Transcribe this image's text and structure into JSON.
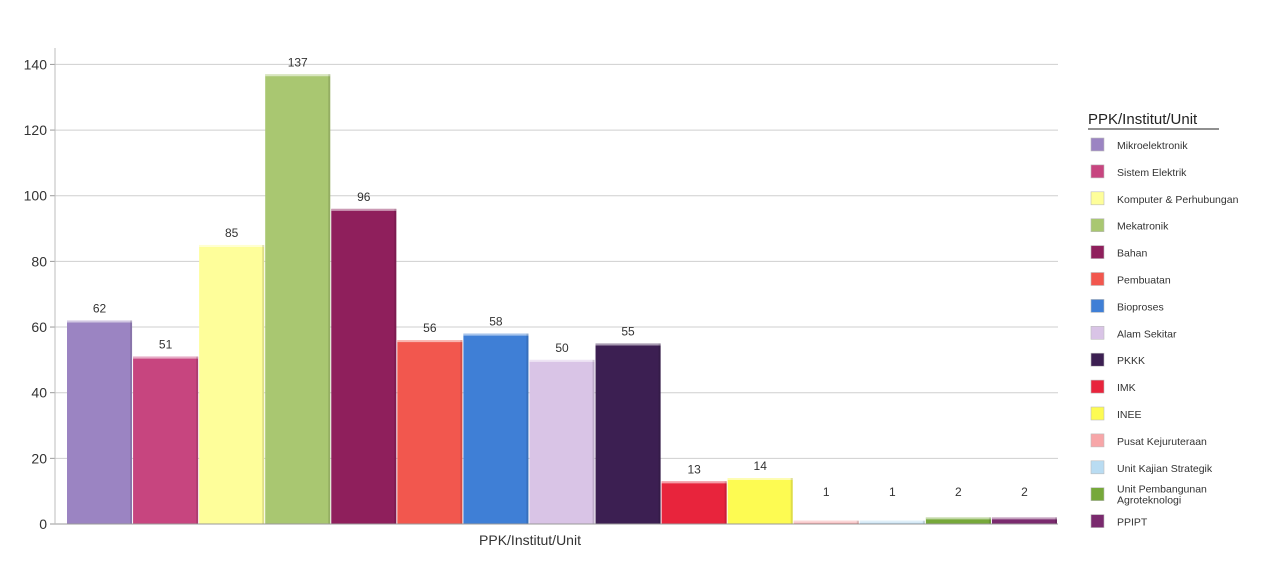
{
  "chart_data": {
    "type": "bar",
    "title": "",
    "xlabel": "PPK/Institut/Unit",
    "ylabel": "",
    "ylim": [
      0,
      145
    ],
    "yticks": [
      0,
      20,
      40,
      60,
      80,
      100,
      120,
      140
    ],
    "grid": true,
    "legend_position": "right",
    "legend_title": "PPK/Institut/Unit",
    "categories": [
      "Mikroelektronik",
      "Sistem Elektrik",
      "Komputer & Perhubungan",
      "Mekatronik",
      "Bahan",
      "Pembuatan",
      "Bioproses",
      "Alam Sekitar",
      "PKKK",
      "IMK",
      "INEE",
      "Pusat Kejuruteraan",
      "Unit Kajian Strategik",
      "Unit Pembangunan Agroteknologi",
      "PPIPT"
    ],
    "legend_lines": [
      [
        "Mikroelektronik"
      ],
      [
        "Sistem Elektrik"
      ],
      [
        "Komputer & Perhubungan"
      ],
      [
        "Mekatronik"
      ],
      [
        "Bahan"
      ],
      [
        "Pembuatan"
      ],
      [
        "Bioproses"
      ],
      [
        "Alam Sekitar"
      ],
      [
        "PKKK"
      ],
      [
        "IMK"
      ],
      [
        "INEE"
      ],
      [
        "Pusat Kejuruteraan"
      ],
      [
        "Unit Kajian Strategik"
      ],
      [
        "Unit Pembangunan",
        "Agroteknologi"
      ],
      [
        "PPIPT"
      ]
    ],
    "values": [
      62,
      51,
      85,
      137,
      96,
      56,
      58,
      50,
      55,
      13,
      14,
      1,
      1,
      2,
      2
    ],
    "colors": [
      "#9b84c2",
      "#c7457f",
      "#fefe9a",
      "#a9c771",
      "#8f1f5c",
      "#f2574e",
      "#3f7fd6",
      "#d9c4e6",
      "#3c1f52",
      "#e8243c",
      "#fdfb52",
      "#f7a6a8",
      "#b9dcf2",
      "#76a83a",
      "#7a2a6e"
    ]
  }
}
